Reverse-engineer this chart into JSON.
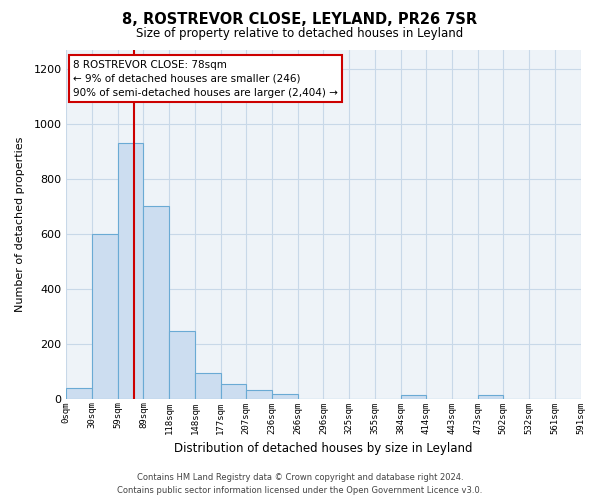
{
  "title": "8, ROSTREVOR CLOSE, LEYLAND, PR26 7SR",
  "subtitle": "Size of property relative to detached houses in Leyland",
  "xlabel": "Distribution of detached houses by size in Leyland",
  "ylabel": "Number of detached properties",
  "bin_width": 29.5,
  "bin_starts": [
    0,
    29.5,
    59,
    88.5,
    118,
    147.5,
    177,
    206.5,
    236,
    265.5,
    295,
    324.5,
    354,
    383.5,
    413,
    442.5,
    472,
    501.5,
    531,
    560.5
  ],
  "bar_heights": [
    38,
    600,
    930,
    700,
    248,
    95,
    55,
    30,
    18,
    0,
    0,
    0,
    0,
    12,
    0,
    0,
    12,
    0,
    0,
    0
  ],
  "bar_color": "#ccddf0",
  "bar_edge_color": "#6aaad4",
  "tick_positions": [
    0,
    29.5,
    59,
    88.5,
    118,
    147.5,
    177,
    206.5,
    236,
    265.5,
    295,
    324.5,
    354,
    383.5,
    413,
    442.5,
    472,
    501.5,
    531,
    560.5,
    590
  ],
  "tick_labels": [
    "0sqm",
    "30sqm",
    "59sqm",
    "89sqm",
    "118sqm",
    "148sqm",
    "177sqm",
    "207sqm",
    "236sqm",
    "266sqm",
    "296sqm",
    "325sqm",
    "355sqm",
    "384sqm",
    "414sqm",
    "443sqm",
    "473sqm",
    "502sqm",
    "532sqm",
    "561sqm",
    "591sqm"
  ],
  "ylim": [
    0,
    1270
  ],
  "xlim": [
    0,
    590
  ],
  "yticks": [
    0,
    200,
    400,
    600,
    800,
    1000,
    1200
  ],
  "property_line_x": 78,
  "property_line_color": "#cc0000",
  "annotation_title": "8 ROSTREVOR CLOSE: 78sqm",
  "annotation_line1": "← 9% of detached houses are smaller (246)",
  "annotation_line2": "90% of semi-detached houses are larger (2,404) →",
  "annotation_box_color": "#ffffff",
  "annotation_box_edge": "#cc0000",
  "footer_line1": "Contains HM Land Registry data © Crown copyright and database right 2024.",
  "footer_line2": "Contains public sector information licensed under the Open Government Licence v3.0.",
  "bg_color": "#ffffff",
  "grid_color": "#c8d8e8",
  "plot_bg_color": "#eef3f8"
}
